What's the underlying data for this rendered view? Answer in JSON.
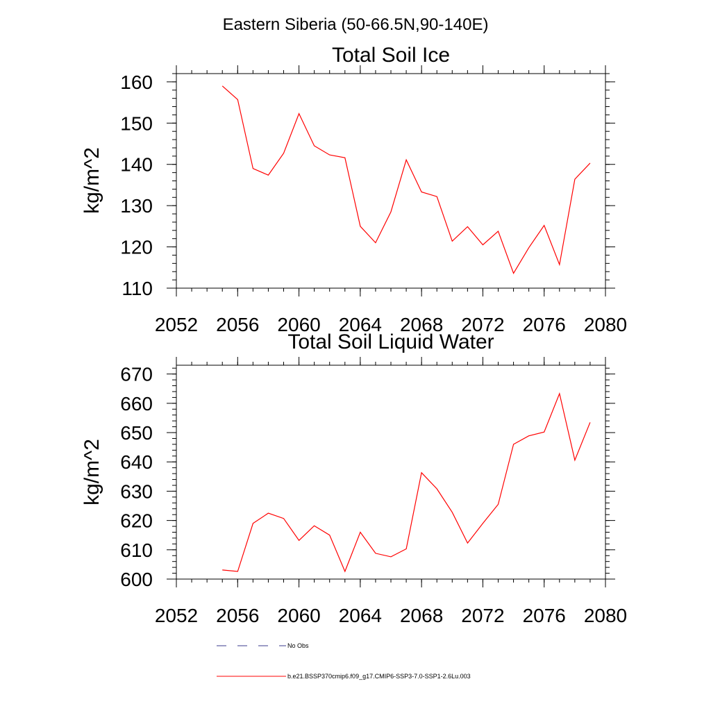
{
  "page_title": "Eastern Siberia (50-66.5N,90-140E)",
  "colors": {
    "series": "#ff0000",
    "obs": "#3a3a8c",
    "axis": "#000000"
  },
  "chart_data": [
    {
      "type": "line",
      "title": "Total Soil Ice",
      "ylabel": "kg/m^2",
      "xlabel": "",
      "xlim": [
        2052,
        2080
      ],
      "ylim": [
        110,
        162
      ],
      "xticks": [
        2052,
        2056,
        2060,
        2064,
        2068,
        2072,
        2076,
        2080
      ],
      "yticks": [
        110,
        120,
        130,
        140,
        150,
        160
      ],
      "x": [
        2055,
        2056,
        2057,
        2058,
        2059,
        2060,
        2061,
        2062,
        2063,
        2064,
        2065,
        2066,
        2067,
        2068,
        2069,
        2070,
        2071,
        2072,
        2073,
        2074,
        2075,
        2076,
        2077,
        2078,
        2079
      ],
      "series": [
        {
          "name": "b.e21.BSSP370cmip6.f09_g17.CMIP6-SSP3-7.0-SSP1-2.6Lu.003",
          "values": [
            159.0,
            155.7,
            139.0,
            137.4,
            142.7,
            152.3,
            144.5,
            142.3,
            141.6,
            125.0,
            121.0,
            128.5,
            141.1,
            133.3,
            132.2,
            121.4,
            124.9,
            120.5,
            123.8,
            113.6,
            119.8,
            125.2,
            115.7,
            136.4,
            140.3
          ]
        }
      ]
    },
    {
      "type": "line",
      "title": "Total Soil Liquid Water",
      "ylabel": "kg/m^2",
      "xlabel": "",
      "xlim": [
        2052,
        2080
      ],
      "ylim": [
        600,
        673
      ],
      "xticks": [
        2052,
        2056,
        2060,
        2064,
        2068,
        2072,
        2076,
        2080
      ],
      "yticks": [
        600,
        610,
        620,
        630,
        640,
        650,
        660,
        670
      ],
      "x": [
        2055,
        2056,
        2057,
        2058,
        2059,
        2060,
        2061,
        2062,
        2063,
        2064,
        2065,
        2066,
        2067,
        2068,
        2069,
        2070,
        2071,
        2072,
        2073,
        2074,
        2075,
        2076,
        2077,
        2078,
        2079
      ],
      "series": [
        {
          "name": "b.e21.BSSP370cmip6.f09_g17.CMIP6-SSP3-7.0-SSP1-2.6Lu.003",
          "values": [
            603.1,
            602.6,
            619.0,
            622.5,
            620.7,
            613.2,
            618.2,
            615.0,
            602.6,
            616.0,
            608.8,
            607.6,
            610.3,
            636.3,
            630.8,
            622.8,
            612.3,
            619.0,
            625.5,
            646.0,
            648.9,
            650.2,
            663.3,
            640.6,
            653.5
          ]
        }
      ]
    }
  ],
  "legend": {
    "obs_label": "No Obs",
    "series_label": "b.e21.BSSP370cmip6.f09_g17.CMIP6-SSP3-7.0-SSP1-2.6Lu.003"
  }
}
